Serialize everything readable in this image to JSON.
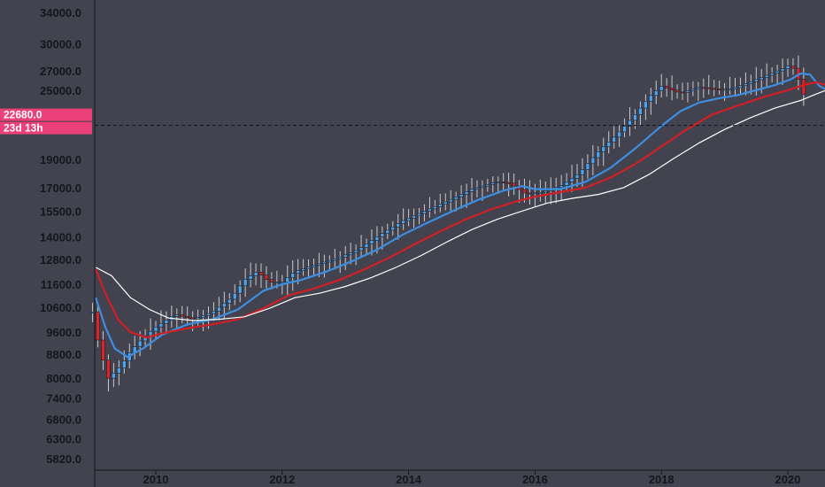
{
  "colors": {
    "background": "#42434e",
    "axis_text": "#15161c",
    "up_candle": "#4aa3f0",
    "down_candle": "#d8242c",
    "wick": "#c9cad0",
    "ma_fast": "#3d8ee0",
    "ma_mid": "#d21f26",
    "ma_slow": "#ffffff",
    "price_tag": "#ec407a"
  },
  "price_tag": {
    "price": "22680.0",
    "countdown": "23d 13h",
    "value": 22680
  },
  "chart_data": {
    "type": "candlestick",
    "title": "",
    "xlabel": "",
    "ylabel": "",
    "y_scale": "log",
    "ylim": [
      5600,
      35500
    ],
    "xlim": [
      2009.0,
      2020.65
    ],
    "grid": false,
    "y_ticks": [
      "34000.0",
      "30000.0",
      "27000.0",
      "25000.0",
      "22680.0",
      "19000.0",
      "17000.0",
      "15500.0",
      "14000.0",
      "12800.0",
      "11600.0",
      "10600.0",
      "9600.0",
      "8800.0",
      "8000.0",
      "7400.0",
      "6800.0",
      "6300.0",
      "5820.0"
    ],
    "x_ticks": [
      "2010",
      "2012",
      "2014",
      "2016",
      "2018",
      "2020"
    ],
    "close_path": [
      [
        2009.0,
        10400
      ],
      [
        2009.1,
        9100
      ],
      [
        2009.25,
        8000
      ],
      [
        2009.45,
        8400
      ],
      [
        2009.6,
        8900
      ],
      [
        2009.8,
        9400
      ],
      [
        2010.0,
        9800
      ],
      [
        2010.3,
        10300
      ],
      [
        2010.6,
        10100
      ],
      [
        2010.9,
        10400
      ],
      [
        2011.2,
        11000
      ],
      [
        2011.4,
        11800
      ],
      [
        2011.6,
        12200
      ],
      [
        2011.8,
        11700
      ],
      [
        2012.0,
        11700
      ],
      [
        2012.2,
        12200
      ],
      [
        2012.5,
        12500
      ],
      [
        2012.9,
        12900
      ],
      [
        2013.2,
        13300
      ],
      [
        2013.5,
        14000
      ],
      [
        2013.9,
        14900
      ],
      [
        2014.2,
        15400
      ],
      [
        2014.6,
        16100
      ],
      [
        2015.0,
        16900
      ],
      [
        2015.4,
        17400
      ],
      [
        2015.6,
        17300
      ],
      [
        2015.85,
        16600
      ],
      [
        2016.1,
        16700
      ],
      [
        2016.4,
        17100
      ],
      [
        2016.7,
        18000
      ],
      [
        2017.0,
        19600
      ],
      [
        2017.3,
        21000
      ],
      [
        2017.6,
        22800
      ],
      [
        2017.8,
        24300
      ],
      [
        2018.0,
        25400
      ],
      [
        2018.3,
        24700
      ],
      [
        2018.6,
        25300
      ],
      [
        2018.85,
        25100
      ],
      [
        2019.1,
        25100
      ],
      [
        2019.4,
        25800
      ],
      [
        2019.7,
        26600
      ],
      [
        2019.95,
        27300
      ],
      [
        2020.05,
        27700
      ],
      [
        2020.15,
        26400
      ],
      [
        2020.25,
        24600
      ]
    ],
    "series": [
      {
        "name": "",
        "color": "#3d8ee0",
        "values": [
          [
            2009.05,
            11000
          ],
          [
            2009.2,
            9800
          ],
          [
            2009.35,
            9000
          ],
          [
            2009.55,
            8700
          ],
          [
            2009.8,
            9000
          ],
          [
            2010.1,
            9500
          ],
          [
            2010.5,
            9900
          ],
          [
            2010.9,
            10100
          ],
          [
            2011.3,
            10500
          ],
          [
            2011.7,
            11300
          ],
          [
            2012.0,
            11600
          ],
          [
            2012.3,
            11800
          ],
          [
            2012.7,
            12200
          ],
          [
            2013.1,
            12700
          ],
          [
            2013.5,
            13300
          ],
          [
            2013.9,
            14100
          ],
          [
            2014.3,
            14800
          ],
          [
            2014.7,
            15500
          ],
          [
            2015.1,
            16200
          ],
          [
            2015.5,
            16800
          ],
          [
            2015.8,
            17100
          ],
          [
            2016.0,
            16900
          ],
          [
            2016.4,
            16900
          ],
          [
            2016.8,
            17400
          ],
          [
            2017.2,
            18400
          ],
          [
            2017.6,
            19900
          ],
          [
            2018.0,
            21700
          ],
          [
            2018.3,
            23000
          ],
          [
            2018.6,
            23800
          ],
          [
            2018.9,
            24200
          ],
          [
            2019.2,
            24500
          ],
          [
            2019.5,
            25000
          ],
          [
            2019.8,
            25500
          ],
          [
            2020.05,
            26100
          ],
          [
            2020.2,
            26700
          ],
          [
            2020.35,
            26600
          ],
          [
            2020.5,
            25400
          ],
          [
            2020.6,
            25100
          ]
        ]
      },
      {
        "name": "",
        "color": "#d21f26",
        "values": [
          [
            2009.05,
            12300
          ],
          [
            2009.2,
            11200
          ],
          [
            2009.4,
            10100
          ],
          [
            2009.6,
            9600
          ],
          [
            2009.85,
            9400
          ],
          [
            2010.1,
            9550
          ],
          [
            2010.5,
            9750
          ],
          [
            2010.9,
            9900
          ],
          [
            2011.3,
            10100
          ],
          [
            2011.7,
            10550
          ],
          [
            2012.1,
            11100
          ],
          [
            2012.5,
            11400
          ],
          [
            2012.9,
            11800
          ],
          [
            2013.3,
            12300
          ],
          [
            2013.7,
            12900
          ],
          [
            2014.1,
            13600
          ],
          [
            2014.5,
            14300
          ],
          [
            2014.9,
            15000
          ],
          [
            2015.3,
            15600
          ],
          [
            2015.7,
            16100
          ],
          [
            2016.0,
            16400
          ],
          [
            2016.4,
            16700
          ],
          [
            2016.8,
            17000
          ],
          [
            2017.2,
            17700
          ],
          [
            2017.6,
            18700
          ],
          [
            2018.0,
            20000
          ],
          [
            2018.4,
            21400
          ],
          [
            2018.8,
            22700
          ],
          [
            2019.2,
            23500
          ],
          [
            2019.6,
            24300
          ],
          [
            2020.0,
            25000
          ],
          [
            2020.25,
            25500
          ],
          [
            2020.45,
            25800
          ],
          [
            2020.55,
            25600
          ],
          [
            2020.65,
            25450
          ]
        ]
      },
      {
        "name": "",
        "color": "#ffffff",
        "values": [
          [
            2009.05,
            12400
          ],
          [
            2009.3,
            12000
          ],
          [
            2009.6,
            11000
          ],
          [
            2009.9,
            10500
          ],
          [
            2010.2,
            10150
          ],
          [
            2010.6,
            10050
          ],
          [
            2011.0,
            10100
          ],
          [
            2011.4,
            10200
          ],
          [
            2011.8,
            10550
          ],
          [
            2012.2,
            11000
          ],
          [
            2012.6,
            11200
          ],
          [
            2013.0,
            11500
          ],
          [
            2013.4,
            11900
          ],
          [
            2013.8,
            12400
          ],
          [
            2014.2,
            13000
          ],
          [
            2014.6,
            13700
          ],
          [
            2015.0,
            14400
          ],
          [
            2015.4,
            15000
          ],
          [
            2015.8,
            15500
          ],
          [
            2016.2,
            16000
          ],
          [
            2016.6,
            16300
          ],
          [
            2017.0,
            16550
          ],
          [
            2017.4,
            17000
          ],
          [
            2017.8,
            17900
          ],
          [
            2018.2,
            19100
          ],
          [
            2018.6,
            20300
          ],
          [
            2019.0,
            21400
          ],
          [
            2019.4,
            22400
          ],
          [
            2019.8,
            23300
          ],
          [
            2020.2,
            24000
          ],
          [
            2020.4,
            24500
          ],
          [
            2020.65,
            25100
          ]
        ]
      }
    ]
  }
}
